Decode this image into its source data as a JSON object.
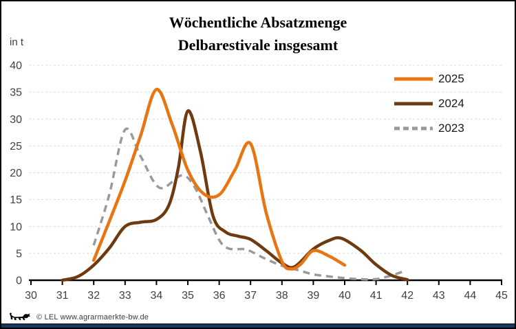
{
  "frame": {
    "bottom_bar_color": "#17375E",
    "border_color": "#000000"
  },
  "title": {
    "line1": "Wöchentliche Absatzmenge",
    "line2": "Delbarestivale insgesamt"
  },
  "footer": {
    "copyright": "© LEL www.agrarmaerkte-bw.de",
    "logo": "bw-lion-icon"
  },
  "chart_data": {
    "type": "line",
    "title": "Wöchentliche Absatzmenge Delbarestivale insgesamt",
    "xlabel": "",
    "ylabel": "in t",
    "xlim": [
      30,
      45
    ],
    "ylim": [
      0,
      40
    ],
    "x_ticks": [
      30,
      31,
      32,
      33,
      34,
      35,
      36,
      37,
      38,
      39,
      40,
      41,
      42,
      43,
      44,
      45
    ],
    "y_ticks": [
      0,
      5,
      10,
      15,
      20,
      25,
      30,
      35,
      40
    ],
    "grid": "horizontal-dashed",
    "legend_position": "upper-right",
    "colors": {
      "grid": "#D9D9D9",
      "axis": "#000000",
      "tick_label": "#404040"
    },
    "series": [
      {
        "name": "2025",
        "color": "#E87511",
        "style": "solid",
        "x": [
          32,
          32.5,
          33,
          33.5,
          34,
          34.5,
          35,
          35.5,
          36,
          36.5,
          37,
          37.5,
          38,
          38.3,
          38.6,
          39,
          39.5,
          40
        ],
        "values": [
          3.7,
          11,
          18.5,
          27,
          35.5,
          29,
          20.5,
          16.1,
          15.9,
          20.5,
          25.4,
          12.5,
          3.5,
          2.1,
          3.0,
          5.5,
          4.5,
          2.8
        ]
      },
      {
        "name": "2024",
        "color": "#6E3A10",
        "style": "solid",
        "x": [
          31,
          31.5,
          32,
          32.5,
          33,
          33.5,
          34,
          34.4,
          34.7,
          35,
          35.4,
          35.8,
          36.2,
          36.6,
          37,
          37.5,
          38,
          38.4,
          39,
          39.5,
          39.9,
          40.5,
          41,
          41.5,
          42
        ],
        "values": [
          0,
          0.7,
          2.8,
          6,
          10,
          10.8,
          11.3,
          14,
          21,
          31.5,
          24,
          12,
          9,
          8.2,
          7.6,
          5.5,
          3.2,
          2.5,
          5.8,
          7.4,
          7.8,
          5.6,
          2.9,
          0.9,
          0.1
        ]
      },
      {
        "name": "2023",
        "color": "#9A9A9A",
        "style": "dashed",
        "x": [
          32,
          32.5,
          33,
          33.5,
          34.1,
          34.8,
          35.2,
          35.6,
          36,
          36.3,
          36.8,
          37,
          37.4,
          38,
          38.5,
          39,
          39.5,
          40,
          40.5,
          41,
          41.5,
          41.9
        ],
        "values": [
          6.5,
          16,
          28,
          23,
          17.2,
          19.5,
          17.5,
          12.5,
          7.5,
          5.9,
          5.8,
          5.4,
          4.2,
          2.7,
          1.9,
          1.1,
          0.7,
          0.4,
          0.2,
          0.2,
          0.9,
          1.7
        ]
      }
    ]
  }
}
